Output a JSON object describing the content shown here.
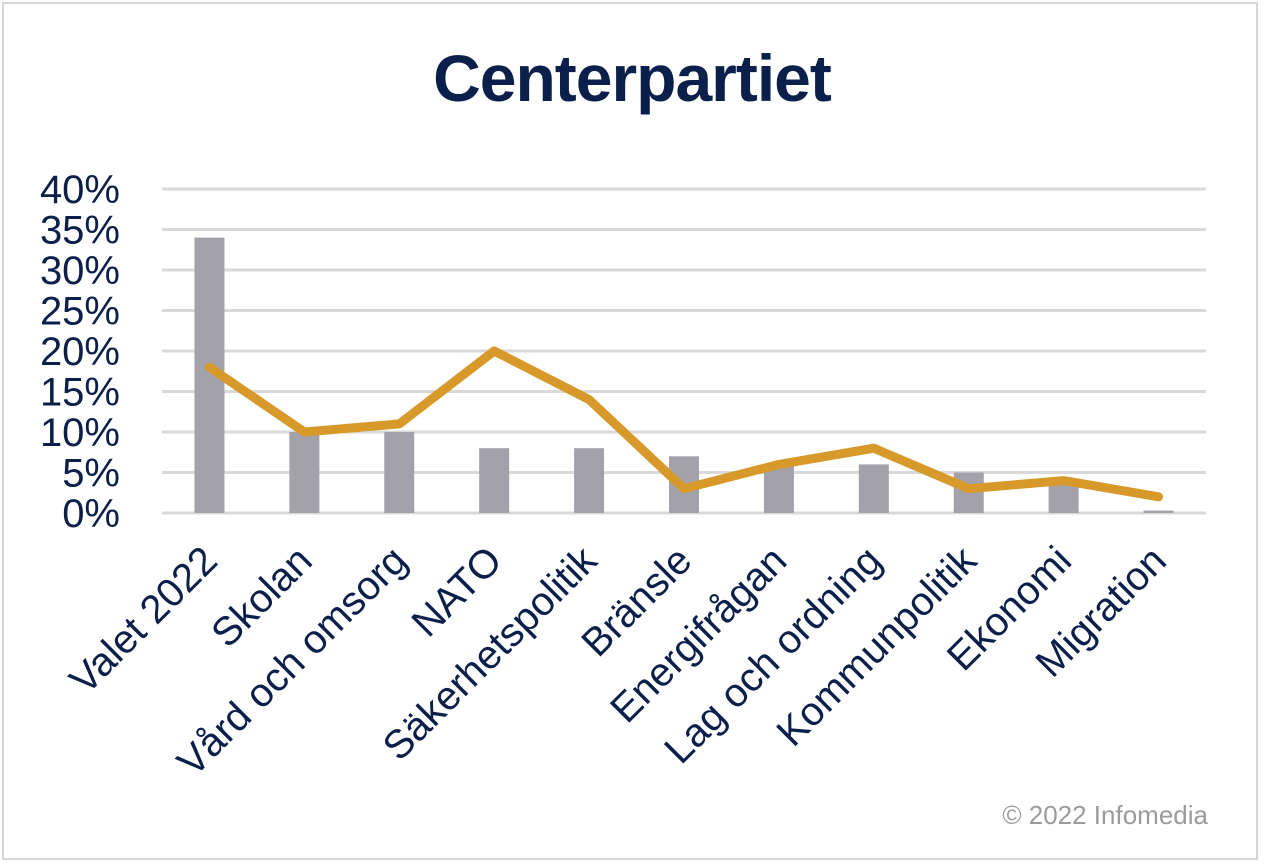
{
  "title": "Centerpartiet",
  "copyright": "© 2022 Infomedia",
  "colors": {
    "bars": "#a3a1aa",
    "line": "#d6992a",
    "text": "#0b1f4b",
    "grid": "#d9d9d9"
  },
  "chart_data": {
    "type": "bar",
    "title": "Centerpartiet",
    "categories": [
      "Valet 2022",
      "Skolan",
      "Vård och omsorg",
      "NATO",
      "Säkerhetspolitik",
      "Bränsle",
      "Energifrågan",
      "Lag och ordning",
      "Kommunpolitik",
      "Ekonomi",
      "Migration"
    ],
    "series": [
      {
        "type": "bar",
        "values": [
          34,
          10,
          10,
          8,
          8,
          7,
          6,
          6,
          5,
          4,
          0.3
        ]
      },
      {
        "type": "line",
        "values": [
          18,
          10,
          11,
          20,
          14,
          3,
          6,
          8,
          3,
          4,
          2
        ]
      }
    ],
    "yticks": [
      "0%",
      "5%",
      "10%",
      "15%",
      "20%",
      "25%",
      "30%",
      "35%",
      "40%"
    ],
    "ylim": [
      0,
      40
    ],
    "grid": true
  }
}
